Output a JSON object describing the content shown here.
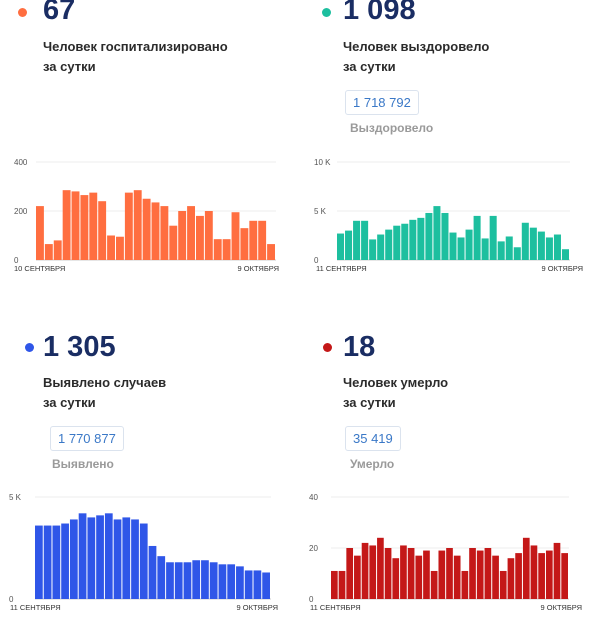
{
  "panels": [
    {
      "color": "#ff6e40",
      "value": "67",
      "desc_line1": "Человек госпитализировано",
      "desc_line2": "за сутки",
      "total": "",
      "total_label": ""
    },
    {
      "color": "#1dbf9f",
      "value": "1 098",
      "desc_line1": "Человек выздоровело",
      "desc_line2": "за сутки",
      "total": "1 718 792",
      "total_label": "Выздоровело"
    },
    {
      "color": "#2f56e8",
      "value": "1 305",
      "desc_line1": "Выявлено случаев",
      "desc_line2": "за сутки",
      "total": "1 770 877",
      "total_label": "Выявлено"
    },
    {
      "color": "#c41818",
      "value": "18",
      "desc_line1": "Человек умерло",
      "desc_line2": "за сутки",
      "total": "35 419",
      "total_label": "Умерло"
    }
  ],
  "chart_data": [
    {
      "type": "bar",
      "color": "#ff6e40",
      "ylim": [
        0,
        400
      ],
      "y_ticks": [
        "400",
        "200",
        "0"
      ],
      "x_start_label": "10 СЕНТЯБРЯ",
      "x_end_label": "9 ОКТЯБРЯ",
      "values": [
        220,
        65,
        80,
        285,
        280,
        265,
        275,
        240,
        100,
        95,
        275,
        285,
        250,
        235,
        220,
        140,
        200,
        220,
        180,
        200,
        85,
        85,
        195,
        130,
        160,
        160,
        65
      ]
    },
    {
      "type": "bar",
      "color": "#1dbf9f",
      "ylim": [
        0,
        10000
      ],
      "y_ticks": [
        "10 K",
        "5 K",
        "0"
      ],
      "x_start_label": "11 СЕНТЯБРЯ",
      "x_end_label": "9 ОКТЯБРЯ",
      "values": [
        2700,
        3000,
        4000,
        4000,
        2100,
        2600,
        3100,
        3500,
        3700,
        4100,
        4300,
        4800,
        5500,
        4800,
        2800,
        2300,
        3100,
        4500,
        2200,
        4500,
        1900,
        2400,
        1300,
        3800,
        3300,
        2900,
        2300,
        2600,
        1100
      ]
    },
    {
      "type": "bar",
      "color": "#2f56e8",
      "ylim": [
        0,
        5000
      ],
      "y_ticks": [
        "5 K",
        "0"
      ],
      "x_start_label": "11 СЕНТЯБРЯ",
      "x_end_label": "9 ОКТЯБРЯ",
      "values": [
        3600,
        3600,
        3600,
        3700,
        3900,
        4200,
        4000,
        4100,
        4200,
        3900,
        4000,
        3900,
        3700,
        2600,
        2100,
        1800,
        1800,
        1800,
        1900,
        1900,
        1800,
        1700,
        1700,
        1600,
        1400,
        1400,
        1300
      ]
    },
    {
      "type": "bar",
      "color": "#c41818",
      "ylim": [
        0,
        40
      ],
      "y_ticks": [
        "40",
        "20",
        "0"
      ],
      "x_start_label": "11 СЕНТЯБРЯ",
      "x_end_label": "9 ОКТЯБРЯ",
      "values": [
        11,
        11,
        20,
        17,
        22,
        21,
        24,
        20,
        16,
        21,
        20,
        17,
        19,
        11,
        19,
        20,
        17,
        11,
        20,
        19,
        20,
        17,
        11,
        16,
        18,
        24,
        21,
        18,
        19,
        22,
        18
      ]
    }
  ]
}
